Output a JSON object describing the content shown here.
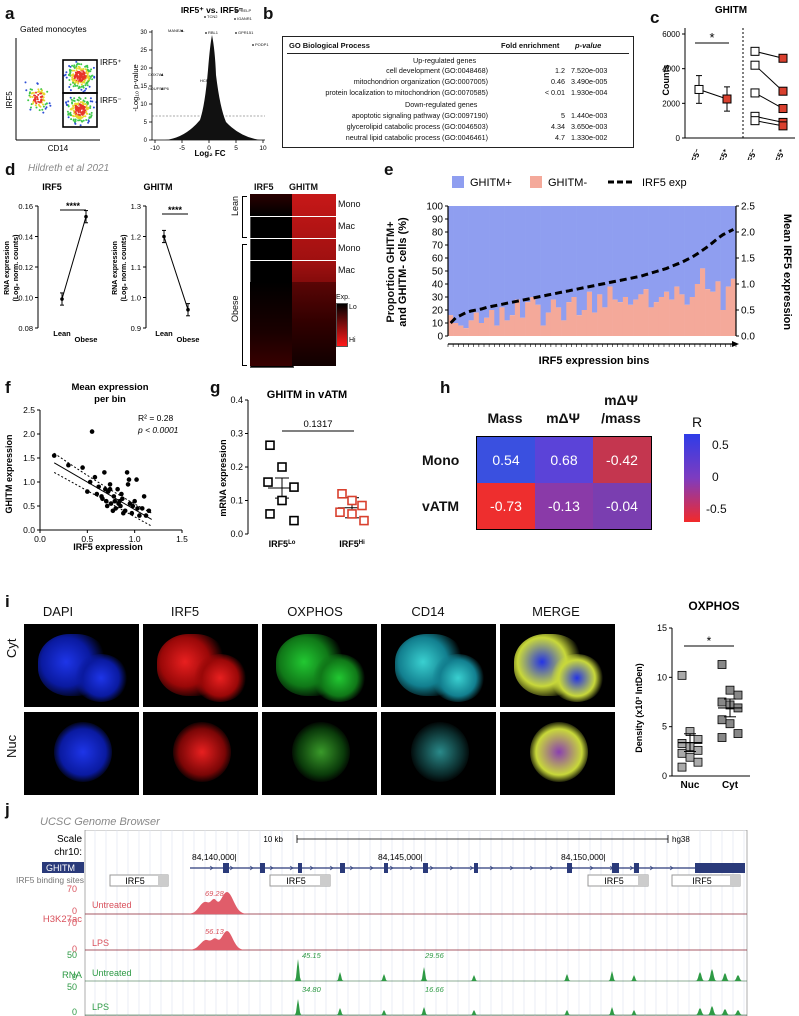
{
  "panels": {
    "a": "a",
    "b": "b",
    "c": "c",
    "d": "d",
    "e": "e",
    "f": "f",
    "g": "g",
    "h": "h",
    "i": "i",
    "j": "j"
  },
  "a": {
    "facs_title": "Gated monocytes",
    "facs_x": "CD14",
    "facs_y": "IRF5",
    "gate_hi": "IRF5⁺",
    "gate_lo": "IRF5⁻",
    "volcano_title": "IRF5⁺ vs. IRF5⁻",
    "volcano_xlabel": "Log₂ FC",
    "volcano_ylabel": "-Log₁₀ p-value",
    "volcano_xticks": [
      "-10",
      "-5",
      "0",
      "5",
      "10"
    ],
    "volcano_yticks": [
      "0",
      "5",
      "10",
      "15",
      "20",
      "25",
      "30"
    ],
    "genes": [
      "TCN2",
      "PRELP",
      "IGANR1",
      "RBL1",
      "GPR151",
      "MANEAL",
      "COX7A1",
      "NDUFS5P6",
      "HCFC1",
      "PODP1"
    ]
  },
  "b": {
    "col1": "GO Biological Process",
    "col2": "Fold enrichment",
    "col3": "p-value",
    "up_header": "Up-regulated genes",
    "down_header": "Down-regulated genes",
    "rows": [
      {
        "term": "cell development (GO:0048468)",
        "fold": "1.2",
        "p": "7.520e-003"
      },
      {
        "term": "mitochondrion organization (GO:0007005)",
        "fold": "0.46",
        "p": "3.490e-005"
      },
      {
        "term": "protein localization to mitochondrion (GO:0070585)",
        "fold": "< 0.01",
        "p": "1.930e-004"
      },
      {
        "term": "apoptotic signaling pathway (GO:0097190)",
        "fold": "5",
        "p": "1.440e-003"
      },
      {
        "term": "glycerolipid catabolic process (GO:0046503)",
        "fold": "4.34",
        "p": "3.650e-003"
      },
      {
        "term": "neutral lipid catabolic process (GO:0046461)",
        "fold": "4.7",
        "p": "1.330e-002"
      }
    ]
  },
  "c": {
    "title": "GHITM",
    "ylabel": "Counts",
    "yticks": [
      "0",
      "2000",
      "4000",
      "6000"
    ],
    "xcats": [
      "IRF5⁻",
      "IRF5⁺",
      "IRF5⁻",
      "IRF5⁺"
    ],
    "sig": "*"
  },
  "d": {
    "source": "Hildreth et al 2021",
    "irf5_title": "IRF5",
    "ghitm_title": "GHITM",
    "ylabel": "RNA expression",
    "ylabel2": "(Log₂ norm. counts)",
    "irf5_yticks": [
      "0.08",
      "0.10",
      "0.12",
      "0.14",
      "0.16"
    ],
    "ghitm_yticks": [
      "0.9",
      "1.0",
      "1.1",
      "1.2",
      "1.3"
    ],
    "xcats": [
      "Lean",
      "Obese"
    ],
    "sig": "****",
    "heat_cols": [
      "IRF5",
      "GHITM"
    ],
    "heat_groups": [
      "Lean",
      "Obese"
    ],
    "heat_rows": [
      "Mono",
      "Mac",
      "Mono",
      "Mac"
    ],
    "legend_title": "Exp.",
    "legend_lo": "Lo",
    "legend_hi": "Hi"
  },
  "e": {
    "legend_ghitm_pos": "GHITM+",
    "legend_ghitm_neg": "GHITM-",
    "legend_irf5": "IRF5 exp",
    "ylabel_left_1": "Proportion GHITM+",
    "ylabel_left_2": "and GHITM- cells (%)",
    "ylabel_right": "Mean IRF5 expression",
    "xlabel": "IRF5 expression bins",
    "yticks_left": [
      "0",
      "10",
      "20",
      "30",
      "40",
      "50",
      "60",
      "70",
      "80",
      "90",
      "100"
    ],
    "yticks_right": [
      "0.0",
      "0.5",
      "1.0",
      "1.5",
      "2.0",
      "2.5"
    ]
  },
  "f": {
    "title1": "Mean expression",
    "title2": "per bin",
    "xlabel": "IRF5 expression",
    "ylabel": "GHITM expression",
    "r2": "R² = 0.28",
    "p": "p < 0.0001",
    "xticks": [
      "0.0",
      "0.5",
      "1.0",
      "1.5"
    ],
    "yticks": [
      "0.0",
      "0.5",
      "1.0",
      "1.5",
      "2.0",
      "2.5"
    ]
  },
  "g": {
    "title": "GHITM in vATM",
    "ylabel": "mRNA expression",
    "pval": "0.1317",
    "yticks": [
      "0.0",
      "0.1",
      "0.2",
      "0.3",
      "0.4"
    ],
    "xcats": [
      "IRF5Lo",
      "IRF5Hi"
    ]
  },
  "h": {
    "cols": [
      "Mass",
      "mΔΨ",
      "mΔΨ"
    ],
    "col3_sub": "/mass",
    "rows": [
      "Mono",
      "vATM"
    ],
    "values": [
      [
        "0.54",
        "0.68",
        "-0.42"
      ],
      [
        "-0.73",
        "-0.13",
        "-0.04"
      ]
    ],
    "colors": [
      [
        "#3a50e0",
        "#5b43d8",
        "#c4364f"
      ],
      [
        "#ee2e2e",
        "#8a3aa8",
        "#7a3eb0"
      ]
    ],
    "legend_title": "R",
    "legend_ticks": [
      "0.5",
      "0",
      "-0.5"
    ]
  },
  "i": {
    "cols": [
      "DAPI",
      "IRF5",
      "OXPHOS",
      "CD14",
      "MERGE"
    ],
    "rows": [
      "Cyt",
      "Nuc"
    ],
    "chart_title": "OXPHOS",
    "ylabel": "Density (x10³ IntDen)",
    "yticks": [
      "0",
      "5",
      "10",
      "15"
    ],
    "xcats": [
      "Nuc",
      "Cyt"
    ],
    "sig": "*"
  },
  "j": {
    "source": "UCSC Genome Browser",
    "scale": "Scale",
    "chr": "chr10:",
    "scale_bar": "10 kb",
    "genome": "hg38",
    "gene": "GHITM",
    "coords": [
      "84,140,000|",
      "84,145,000|",
      "84,150,000|"
    ],
    "binding_label": "IRF5 binding sites",
    "binding_site": "IRF5",
    "h3k27ac": "H3K27ac",
    "rna": "RNA",
    "untreated": "Untreated",
    "lps": "LPS",
    "h_ytick_top": "70",
    "h_ytick_bot": "0",
    "r_ytick_top": "50",
    "r_ytick_bot": "0",
    "h_peak_untreated": "69.28",
    "h_peak_lps": "56.13",
    "rna_untreated_1": "45.15",
    "rna_untreated_2": "29.56",
    "rna_lps_1": "34.80",
    "rna_lps_2": "16.66"
  },
  "colors": {
    "ghitm_pos": "#8f9ef0",
    "ghitm_neg": "#f4a99a",
    "red_marker": "#d9402e",
    "h3k27ac": "#e05d6a",
    "rna": "#2e9a45"
  },
  "chart_data": [
    {
      "type": "line",
      "panel": "d-IRF5",
      "title": "IRF5",
      "categories": [
        "Lean",
        "Obese"
      ],
      "values": [
        0.099,
        0.153
      ],
      "ylabel": "RNA expression (Log₂ norm. counts)",
      "ylim": [
        0.08,
        0.16
      ]
    },
    {
      "type": "line",
      "panel": "d-GHITM",
      "title": "GHITM",
      "categories": [
        "Lean",
        "Obese"
      ],
      "values": [
        1.2,
        0.96
      ],
      "ylabel": "RNA expression (Log₂ norm. counts)",
      "ylim": [
        0.9,
        1.3
      ]
    },
    {
      "type": "scatter",
      "panel": "c",
      "title": "GHITM",
      "ylabel": "Counts",
      "ylim": [
        0,
        6000
      ],
      "series": [
        {
          "name": "IRF5⁻",
          "values": [
            2800
          ]
        },
        {
          "name": "IRF5⁺",
          "values": [
            2250
          ]
        }
      ],
      "paired_left": [
        5000,
        4200,
        2600,
        1250,
        1000
      ],
      "paired_right": [
        4600,
        2700,
        1700,
        900,
        700
      ]
    },
    {
      "type": "bar",
      "panel": "e",
      "x": "IRF5 expression bins",
      "ylabel": "Proportion GHITM+ and GHITM- cells (%)",
      "ylim": [
        0,
        100
      ],
      "ghitm_neg_percent": [
        16,
        10,
        8,
        6,
        12,
        18,
        10,
        14,
        20,
        8,
        22,
        12,
        16,
        28,
        14,
        26,
        30,
        24,
        8,
        18,
        28,
        22,
        12,
        26,
        30,
        16,
        20,
        34,
        18,
        32,
        22,
        38,
        28,
        26,
        30,
        24,
        28,
        32,
        36,
        22,
        26,
        30,
        34,
        28,
        38,
        32,
        24,
        30,
        40,
        52,
        36,
        34,
        42,
        20,
        38,
        44
      ],
      "irf5_mean": [
        0.25,
        0.35,
        0.4,
        0.45,
        0.48,
        0.5,
        0.52,
        0.55,
        0.57,
        0.59,
        0.61,
        0.63,
        0.65,
        0.67,
        0.69,
        0.71,
        0.73,
        0.75,
        0.77,
        0.79,
        0.81,
        0.83,
        0.85,
        0.87,
        0.89,
        0.91,
        0.93,
        0.95,
        0.97,
        0.99,
        1.01,
        1.03,
        1.05,
        1.07,
        1.09,
        1.11,
        1.13,
        1.15,
        1.18,
        1.21,
        1.24,
        1.27,
        1.3,
        1.34,
        1.38,
        1.42,
        1.47,
        1.52,
        1.58,
        1.65,
        1.72,
        1.8,
        1.88,
        1.95,
        2.0,
        2.05
      ],
      "y2lim": [
        0,
        2.5
      ]
    },
    {
      "type": "scatter",
      "panel": "f",
      "xlabel": "IRF5 expression",
      "ylabel": "GHITM expression",
      "xlim": [
        0,
        1.5
      ],
      "ylim": [
        0,
        2.5
      ],
      "x": [
        0.15,
        0.3,
        0.45,
        0.5,
        0.55,
        0.58,
        0.62,
        0.65,
        0.68,
        0.7,
        0.72,
        0.74,
        0.75,
        0.78,
        0.8,
        0.82,
        0.84,
        0.85,
        0.87,
        0.9,
        0.92,
        0.95,
        0.97,
        1.0,
        1.02,
        1.05,
        1.08,
        1.1,
        1.12,
        0.6,
        0.66,
        0.71,
        0.77,
        0.83,
        0.88,
        0.93,
        0.98,
        1.03,
        0.53,
        0.74,
        0.86,
        0.94,
        1.15,
        0.79,
        0.69
      ],
      "y": [
        1.55,
        1.35,
        1.3,
        0.8,
        2.05,
        1.1,
        0.9,
        0.7,
        1.2,
        0.6,
        0.8,
        0.95,
        0.55,
        0.7,
        0.45,
        0.85,
        0.6,
        0.5,
        0.65,
        0.4,
        1.2,
        0.55,
        0.35,
        0.6,
        1.05,
        0.3,
        0.45,
        0.7,
        0.3,
        0.75,
        0.65,
        0.5,
        0.4,
        0.55,
        0.35,
        0.95,
        0.5,
        0.45,
        1.0,
        0.85,
        0.75,
        1.05,
        0.4,
        0.6,
        0.85
      ]
    },
    {
      "type": "scatter",
      "panel": "g",
      "title": "GHITM in vATM",
      "ylabel": "mRNA expression",
      "ylim": [
        0,
        0.4
      ],
      "series": [
        {
          "name": "IRF5Lo",
          "values": [
            0.265,
            0.2,
            0.155,
            0.14,
            0.1,
            0.06,
            0.04
          ]
        },
        {
          "name": "IRF5Hi",
          "values": [
            0.12,
            0.1,
            0.085,
            0.065,
            0.06,
            0.04
          ]
        }
      ]
    },
    {
      "type": "heatmap",
      "panel": "h",
      "rows": [
        "Mono",
        "vATM"
      ],
      "cols": [
        "Mass",
        "mΔΨ",
        "mΔΨ/mass"
      ],
      "values": [
        [
          0.54,
          0.68,
          -0.42
        ],
        [
          -0.73,
          -0.13,
          -0.04
        ]
      ],
      "legend": "R"
    },
    {
      "type": "scatter",
      "panel": "i",
      "title": "OXPHOS",
      "ylabel": "Density (x10³ IntDen)",
      "ylim": [
        0,
        15
      ],
      "series": [
        {
          "name": "Nuc",
          "values": [
            10.2,
            4.5,
            3.7,
            3.3,
            3.0,
            2.6,
            2.3,
            1.9,
            1.4,
            0.9
          ]
        },
        {
          "name": "Cyt",
          "values": [
            11.3,
            8.7,
            8.2,
            7.5,
            7.2,
            6.9,
            5.7,
            5.3,
            4.3,
            3.9
          ]
        }
      ]
    }
  ]
}
